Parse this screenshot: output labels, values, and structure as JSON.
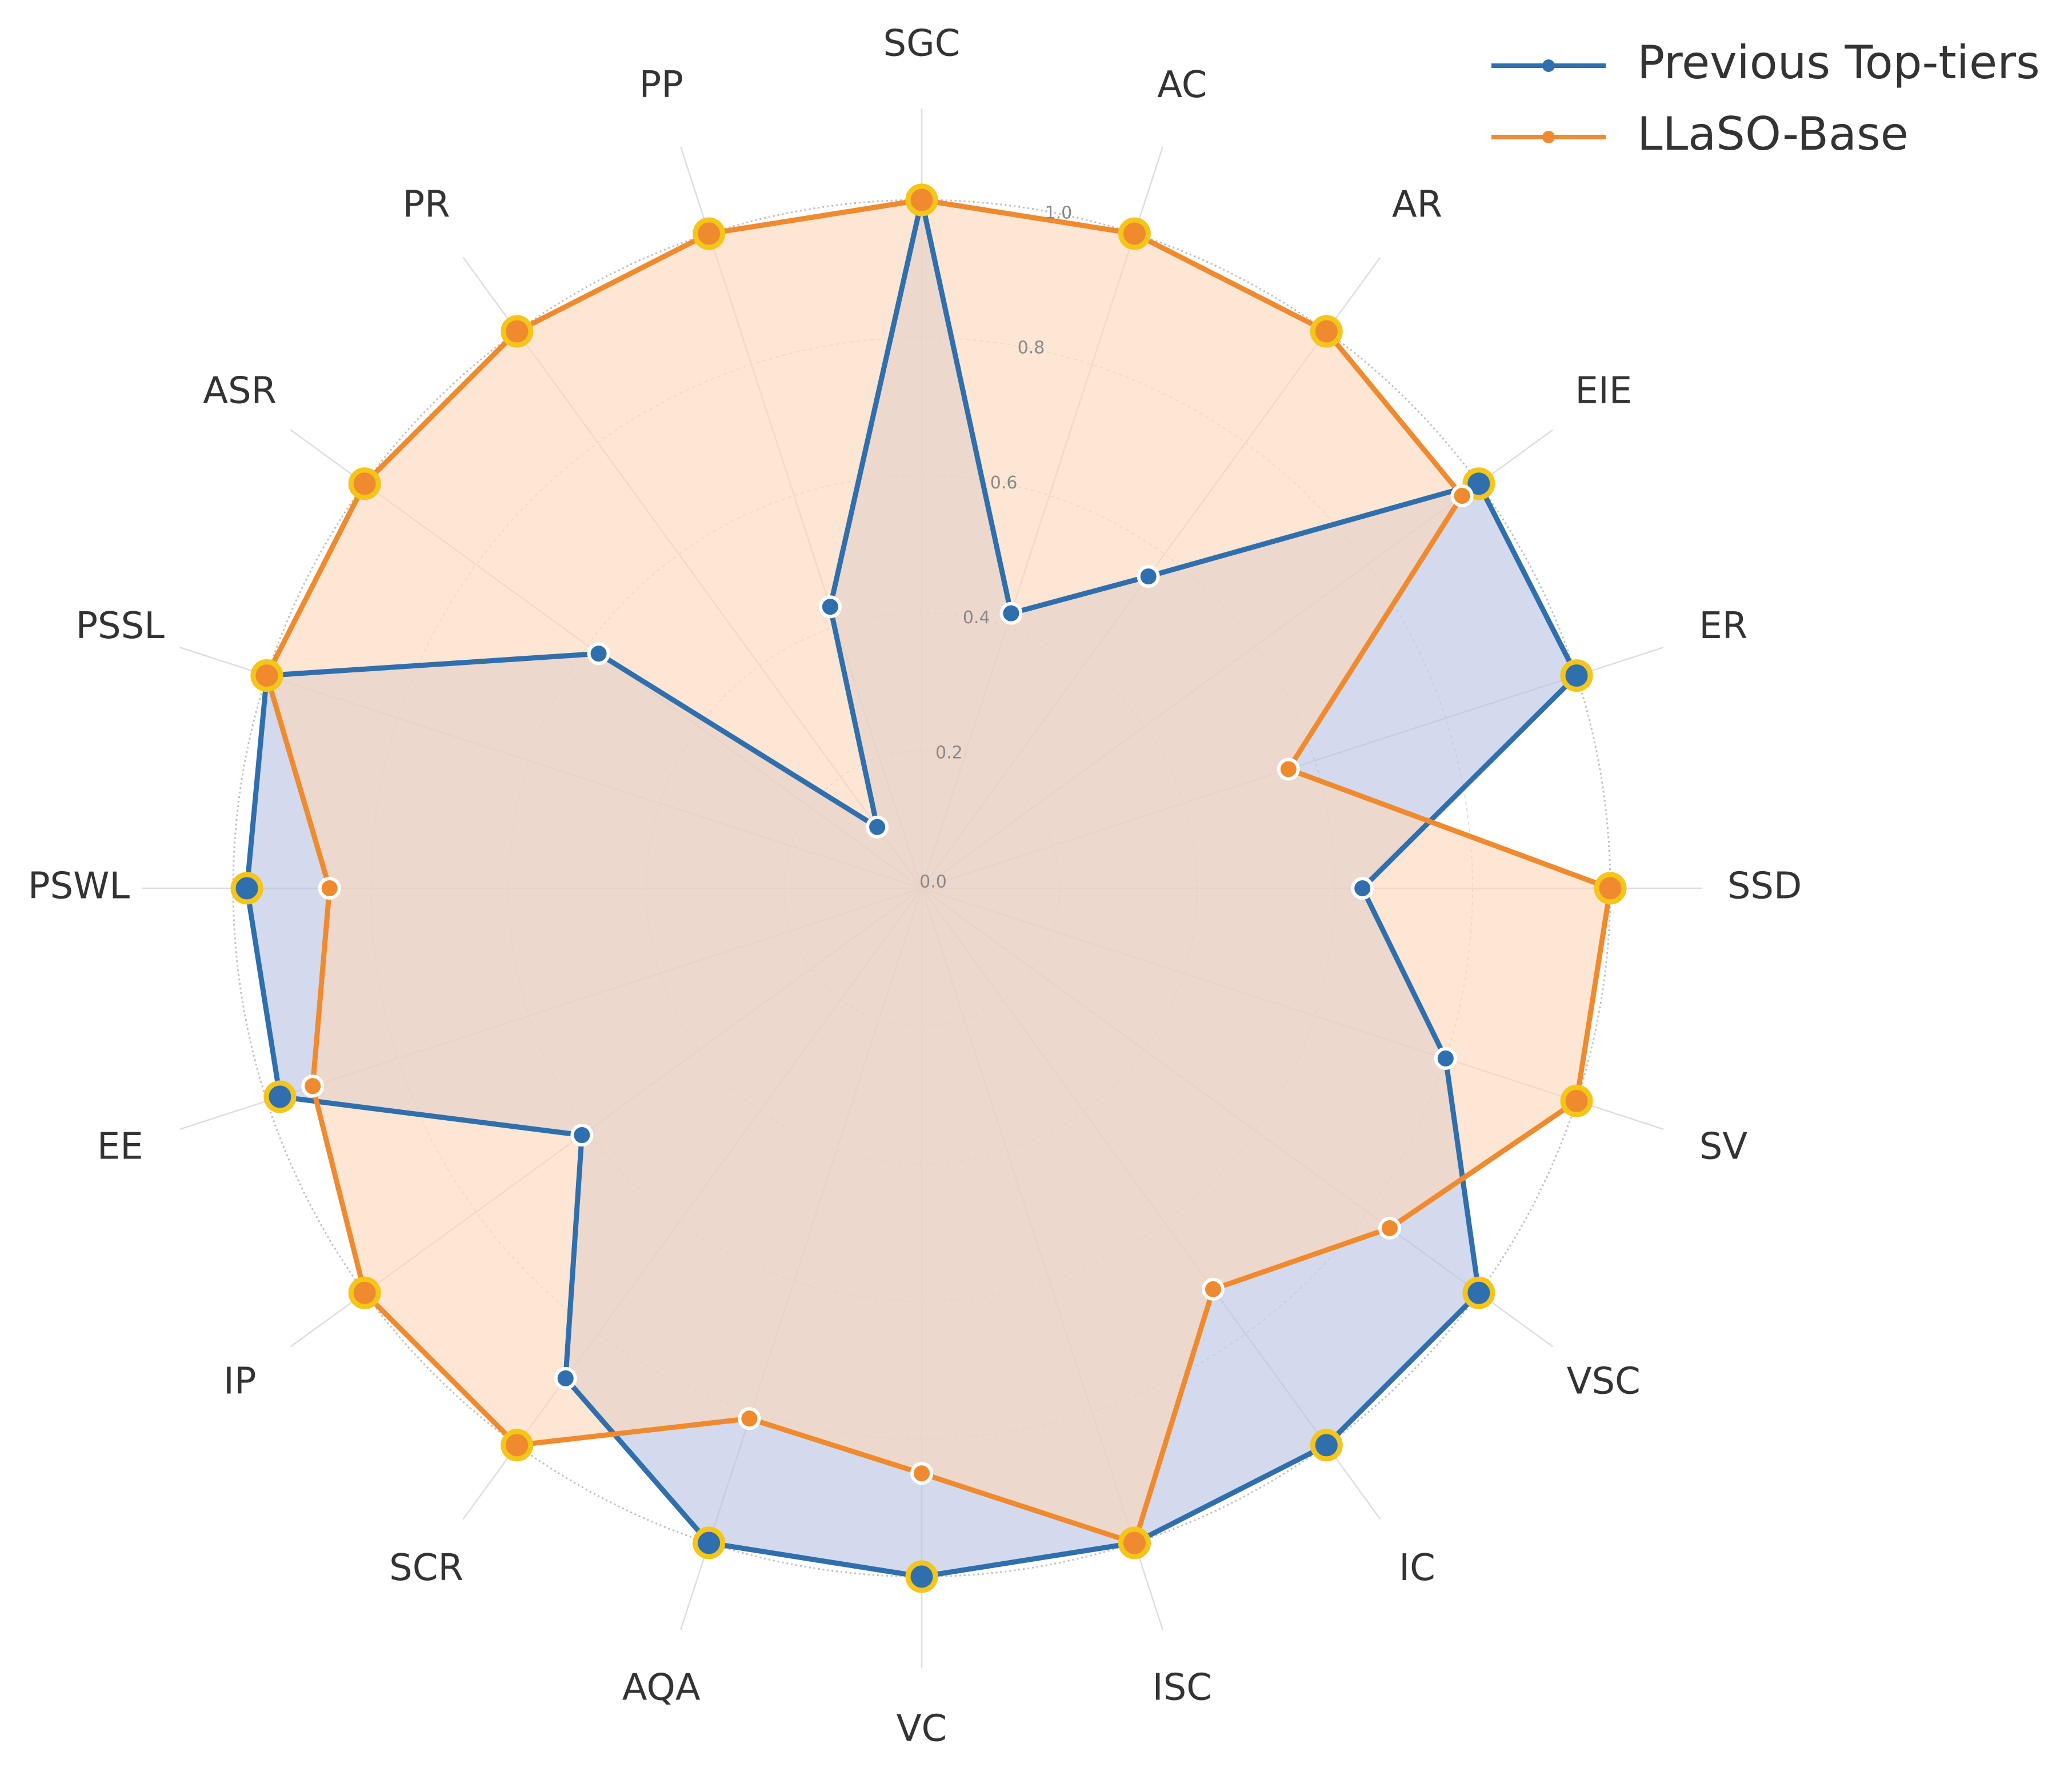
{
  "chart_data": {
    "type": "radar",
    "axes": [
      "SGC",
      "AC",
      "AR",
      "EIE",
      "ER",
      "SSD",
      "SV",
      "VSC",
      "IC",
      "ISC",
      "VC",
      "AQA",
      "SCR",
      "IP",
      "EE",
      "PSWL",
      "PSSL",
      "ASR",
      "PR",
      "PP"
    ],
    "rlim": [
      0.0,
      1.0
    ],
    "r_ticks": [
      "0.0",
      "0.2",
      "0.4",
      "0.6",
      "0.8",
      "1.0"
    ],
    "r_tick_values": [
      0.0,
      0.2,
      0.4,
      0.6,
      0.8,
      1.0
    ],
    "grid": true,
    "legend_position": "top-right",
    "series": [
      {
        "name": "Previous Top-tiers",
        "color": "#2f6fad",
        "fill": "#b8c4e2",
        "values": [
          1.0,
          0.42,
          0.56,
          1.0,
          1.0,
          0.64,
          0.8,
          1.0,
          1.0,
          1.0,
          1.0,
          1.0,
          0.88,
          0.61,
          0.98,
          0.98,
          1.0,
          0.58,
          0.11,
          0.43
        ],
        "highlight": [
          true,
          false,
          false,
          true,
          true,
          false,
          false,
          true,
          true,
          true,
          true,
          true,
          false,
          false,
          true,
          true,
          true,
          false,
          false,
          false
        ]
      },
      {
        "name": "LLaSO-Base",
        "color": "#f08a2e",
        "fill": "#fbd6b8",
        "values": [
          1.0,
          1.0,
          1.0,
          0.97,
          0.56,
          1.0,
          1.0,
          0.84,
          0.72,
          1.0,
          0.85,
          0.81,
          1.0,
          1.0,
          0.93,
          0.86,
          1.0,
          1.0,
          1.0,
          1.0
        ],
        "highlight": [
          true,
          true,
          true,
          false,
          false,
          true,
          true,
          false,
          false,
          true,
          false,
          false,
          true,
          true,
          false,
          false,
          true,
          true,
          true,
          true
        ]
      }
    ]
  }
}
